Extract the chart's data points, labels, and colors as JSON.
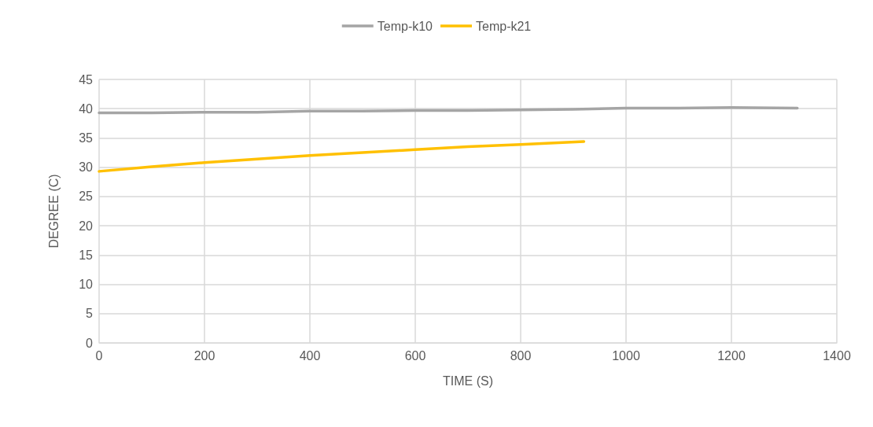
{
  "chart_data": {
    "type": "line",
    "xlabel": "TIME (S)",
    "ylabel": "DEGREE (C)",
    "xlim": [
      0,
      1400
    ],
    "xticks": [
      0,
      200,
      400,
      600,
      800,
      1000,
      1200,
      1400
    ],
    "ylim": [
      0,
      45
    ],
    "yticks": [
      0,
      5,
      10,
      15,
      20,
      25,
      30,
      35,
      40,
      45
    ],
    "grid": true,
    "legend": "top",
    "marker": "none",
    "line_style": "solid",
    "series": [
      {
        "name": "Temp-k10",
        "color": "#a5a5a5",
        "x": [
          0,
          100,
          200,
          300,
          400,
          500,
          600,
          700,
          800,
          900,
          1000,
          1100,
          1200,
          1325
        ],
        "values": [
          39.3,
          39.3,
          39.4,
          39.4,
          39.6,
          39.6,
          39.7,
          39.7,
          39.8,
          39.9,
          40.1,
          40.1,
          40.2,
          40.1
        ]
      },
      {
        "name": "Temp-k21",
        "color": "#ffc000",
        "x": [
          0,
          100,
          200,
          300,
          400,
          500,
          600,
          700,
          800,
          920
        ],
        "values": [
          29.3,
          30.1,
          30.8,
          31.4,
          32.0,
          32.5,
          33.0,
          33.5,
          33.9,
          34.4
        ]
      }
    ]
  }
}
